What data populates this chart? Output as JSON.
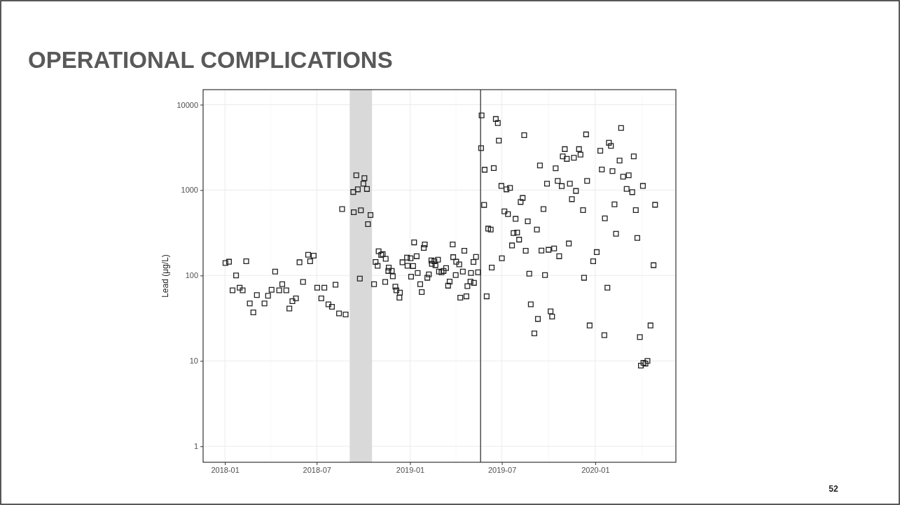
{
  "chart_data": {
    "type": "scatter",
    "title": "OPERATIONAL COMPLICATIONS",
    "ylabel": "Lead (μg/L)",
    "annotations": [
      "52"
    ],
    "log": true,
    "grid": true,
    "marker": "square",
    "xlim": [
      "2017-11-19",
      "2020-06-08"
    ],
    "xticks": [
      "2018-01",
      "2018-07",
      "2019-01",
      "2019-07",
      "2020-01"
    ],
    "ylim": [
      0.65,
      15000
    ],
    "yticks": [
      1,
      10,
      100,
      1000,
      10000
    ],
    "bands": [
      {
        "axis": "x",
        "from": "2018-09-04",
        "to": "2018-10-18",
        "color": "#d9d9d9"
      }
    ],
    "ref_lines": [
      {
        "axis": "x",
        "value": "2019-05-20",
        "color": "#333333"
      }
    ],
    "series": [
      {
        "color": "#222222",
        "x": [
          "2018-01-02",
          "2018-01-09",
          "2018-01-16",
          "2018-01-23",
          "2018-01-30",
          "2018-02-05",
          "2018-02-12",
          "2018-02-19",
          "2018-02-26",
          "2018-03-05",
          "2018-03-20",
          "2018-03-27",
          "2018-04-03",
          "2018-04-10",
          "2018-04-18",
          "2018-04-24",
          "2018-05-02",
          "2018-05-08",
          "2018-05-14",
          "2018-05-21",
          "2018-05-28",
          "2018-06-04",
          "2018-06-14",
          "2018-06-18",
          "2018-06-25",
          "2018-07-02",
          "2018-07-10",
          "2018-07-16",
          "2018-07-24",
          "2018-07-31",
          "2018-08-07",
          "2018-08-14",
          "2018-08-20",
          "2018-08-27",
          "2018-09-11",
          "2018-09-12",
          "2018-09-17",
          "2018-09-20",
          "2018-09-24",
          "2018-09-26",
          "2018-10-01",
          "2018-10-03",
          "2018-10-08",
          "2018-10-10",
          "2018-10-15",
          "2018-10-22",
          "2018-10-25",
          "2018-10-29",
          "2018-10-31",
          "2018-11-05",
          "2018-11-08",
          "2018-11-13",
          "2018-11-14",
          "2018-11-19",
          "2018-11-20",
          "2018-11-26",
          "2018-11-28",
          "2018-12-03",
          "2018-12-05",
          "2018-12-11",
          "2018-12-12",
          "2018-12-17",
          "2018-12-26",
          "2018-12-27",
          "2019-01-02",
          "2019-01-03",
          "2019-01-07",
          "2019-01-09",
          "2019-01-14",
          "2019-01-16",
          "2019-01-21",
          "2019-01-24",
          "2019-01-28",
          "2019-01-30",
          "2019-02-04",
          "2019-02-07",
          "2019-02-12",
          "2019-02-13",
          "2019-02-18",
          "2019-02-20",
          "2019-02-25",
          "2019-02-27",
          "2019-03-04",
          "2019-03-08",
          "2019-03-13",
          "2019-03-17",
          "2019-03-20",
          "2019-03-26",
          "2019-03-27",
          "2019-04-01",
          "2019-04-02",
          "2019-04-08",
          "2019-04-10",
          "2019-04-15",
          "2019-04-18",
          "2019-04-22",
          "2019-04-24",
          "2019-04-30",
          "2019-05-01",
          "2019-05-06",
          "2019-05-07",
          "2019-05-11",
          "2019-05-15",
          "2019-05-21",
          "2019-05-22",
          "2019-05-27",
          "2019-05-28",
          "2019-06-01",
          "2019-06-04",
          "2019-06-09",
          "2019-06-11",
          "2019-06-15",
          "2019-06-19",
          "2019-06-23",
          "2019-06-25",
          "2019-06-30",
          "2019-07-01",
          "2019-07-06",
          "2019-07-10",
          "2019-07-13",
          "2019-07-17",
          "2019-07-21",
          "2019-07-24",
          "2019-07-28",
          "2019-07-31",
          "2019-08-04",
          "2019-08-07",
          "2019-08-11",
          "2019-08-14",
          "2019-08-17",
          "2019-08-21",
          "2019-08-24",
          "2019-08-27",
          "2019-09-03",
          "2019-09-08",
          "2019-09-10",
          "2019-09-14",
          "2019-09-17",
          "2019-09-21",
          "2019-09-24",
          "2019-09-28",
          "2019-10-01",
          "2019-10-05",
          "2019-10-08",
          "2019-10-12",
          "2019-10-15",
          "2019-10-19",
          "2019-10-22",
          "2019-10-27",
          "2019-10-29",
          "2019-11-02",
          "2019-11-06",
          "2019-11-10",
          "2019-11-12",
          "2019-11-16",
          "2019-11-20",
          "2019-11-24",
          "2019-11-30",
          "2019-12-03",
          "2019-12-08",
          "2019-12-10",
          "2019-12-14",
          "2019-12-16",
          "2019-12-21",
          "2019-12-28",
          "2020-01-04",
          "2020-01-11",
          "2020-01-14",
          "2020-01-19",
          "2020-01-20",
          "2020-01-25",
          "2020-01-28",
          "2020-02-01",
          "2020-02-04",
          "2020-02-08",
          "2020-02-11",
          "2020-02-18",
          "2020-02-21",
          "2020-02-25",
          "2020-03-03",
          "2020-03-07",
          "2020-03-14",
          "2020-03-17",
          "2020-03-21",
          "2020-03-24",
          "2020-03-29",
          "2020-03-31",
          "2020-04-04",
          "2020-04-05",
          "2020-04-09",
          "2020-04-13",
          "2020-04-19",
          "2020-04-25",
          "2020-04-28"
        ],
        "values": [
          140,
          145,
          67,
          100,
          72,
          67,
          147,
          47,
          37,
          59,
          47,
          58,
          68,
          111,
          67,
          79,
          67,
          41,
          50,
          54,
          143,
          84,
          175,
          147,
          171,
          72,
          54,
          72,
          46,
          43,
          78,
          36,
          600,
          35,
          950,
          550,
          1490,
          1020,
          92,
          580,
          1190,
          1380,
          1030,
          400,
          510,
          79,
          144,
          130,
          192,
          174,
          178,
          84,
          157,
          113,
          124,
          113,
          98,
          74,
          67,
          55,
          63,
          143,
          162,
          130,
          159,
          97,
          129,
          244,
          168,
          107,
          79,
          64,
          210,
          231,
          94,
          103,
          150,
          137,
          147,
          132,
          153,
          111,
          109,
          113,
          122,
          76,
          85,
          231,
          164,
          101,
          145,
          135,
          55,
          111,
          195,
          57,
          75,
          85,
          107,
          144,
          82,
          165,
          109,
          3100,
          7500,
          670,
          1730,
          57,
          354,
          345,
          124,
          1810,
          6800,
          6100,
          3800,
          1120,
          159,
          564,
          1020,
          523,
          1060,
          225,
          314,
          461,
          318,
          263,
          726,
          809,
          4400,
          195,
          431,
          105,
          46,
          21,
          345,
          31,
          1940,
          196,
          600,
          101,
          1190,
          200,
          38,
          33,
          207,
          1800,
          1280,
          168,
          1115,
          2480,
          3020,
          2320,
          237,
          1190,
          783,
          2390,
          977,
          3020,
          2600,
          583,
          94,
          4490,
          1280,
          26,
          147,
          188,
          2890,
          1740,
          20,
          467,
          72,
          3580,
          3300,
          1670,
          682,
          308,
          2215,
          5330,
          1435,
          1033,
          1490,
          946,
          2480,
          583,
          275,
          19,
          8.8,
          1120,
          9.5,
          9.3,
          10,
          26,
          132,
          673
        ]
      }
    ]
  }
}
